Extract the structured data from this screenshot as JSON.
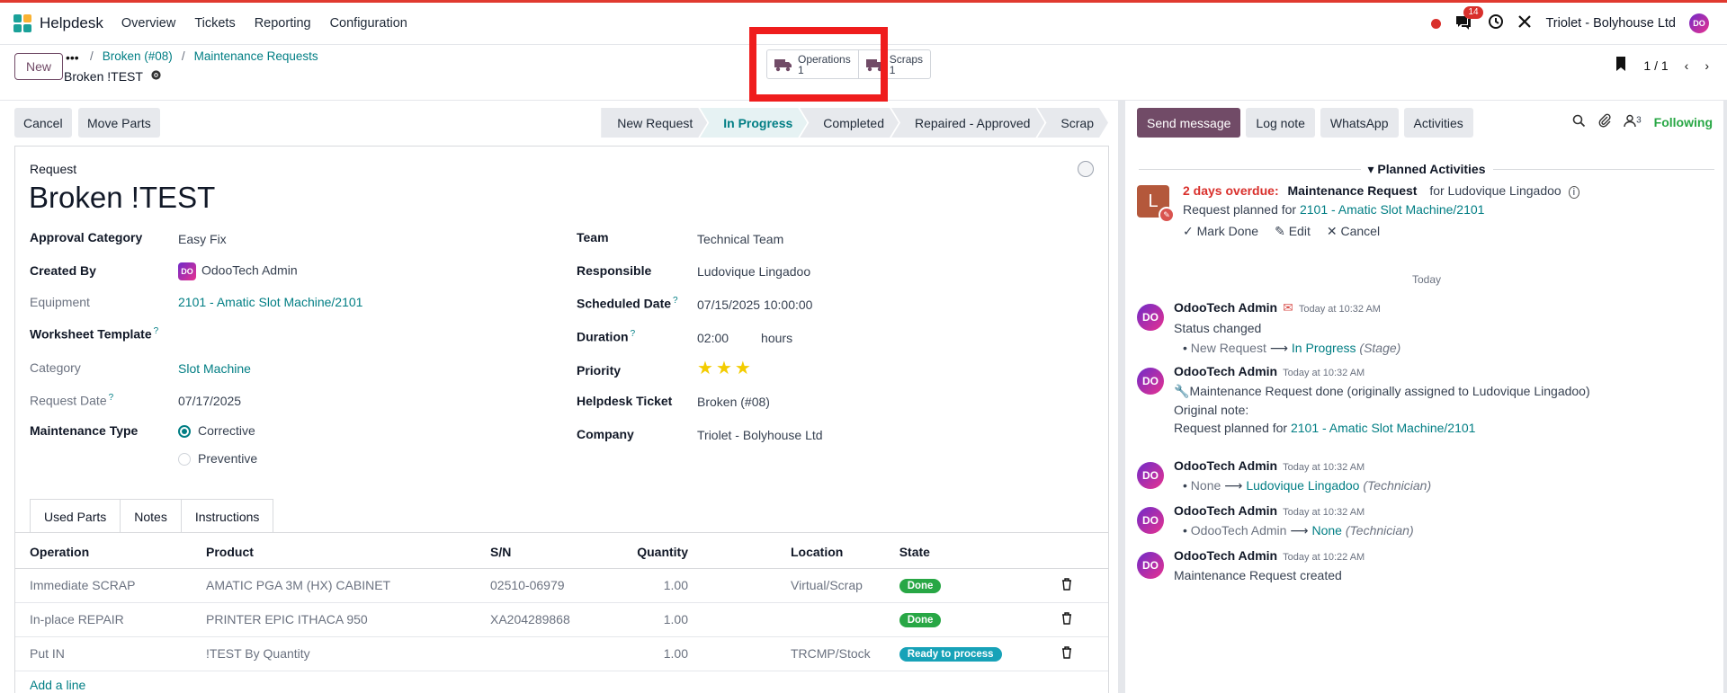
{
  "nav": {
    "app_name": "Helpdesk",
    "menu": [
      "Overview",
      "Tickets",
      "Reporting",
      "Configuration"
    ],
    "chat_count": "14",
    "company": "Triolet - Bolyhouse Ltd"
  },
  "control": {
    "new_label": "New",
    "breadcrumb": [
      "Broken (#08)",
      "Maintenance Requests"
    ],
    "record_name": "Broken !TEST",
    "smart_buttons": [
      {
        "label": "Operations",
        "count": "1"
      },
      {
        "label": "Scraps",
        "count": "1"
      }
    ],
    "pager": "1 / 1"
  },
  "statusbar": {
    "cancel": "Cancel",
    "move_parts": "Move Parts",
    "stages": [
      "New Request",
      "In Progress",
      "Completed",
      "Repaired - Approved",
      "Scrap"
    ],
    "active_stage": "In Progress"
  },
  "form": {
    "request_label": "Request",
    "title": "Broken !TEST",
    "left": {
      "approval_category": {
        "label": "Approval Category",
        "value": "Easy Fix"
      },
      "created_by": {
        "label": "Created By",
        "value": "OdooTech Admin"
      },
      "equipment": {
        "label": "Equipment",
        "value": "2101 - Amatic Slot Machine/2101"
      },
      "worksheet": {
        "label": "Worksheet Template",
        "help": "?"
      },
      "category": {
        "label": "Category",
        "value": "Slot Machine"
      },
      "request_date": {
        "label": "Request Date",
        "help": "?",
        "value": "07/17/2025"
      },
      "maintenance_type": {
        "label": "Maintenance Type",
        "options": [
          "Corrective",
          "Preventive"
        ],
        "selected": "Corrective"
      }
    },
    "right": {
      "team": {
        "label": "Team",
        "value": "Technical Team"
      },
      "responsible": {
        "label": "Responsible",
        "value": "Ludovique Lingadoo"
      },
      "scheduled_date": {
        "label": "Scheduled Date",
        "help": "?",
        "value": "07/15/2025 10:00:00"
      },
      "duration": {
        "label": "Duration",
        "help": "?",
        "value": "02:00",
        "unit": "hours"
      },
      "priority": {
        "label": "Priority",
        "stars": 3,
        "max": 3
      },
      "helpdesk_ticket": {
        "label": "Helpdesk Ticket",
        "value": "Broken (#08)"
      },
      "company": {
        "label": "Company",
        "value": "Triolet - Bolyhouse Ltd"
      }
    },
    "tabs": [
      "Used Parts",
      "Notes",
      "Instructions"
    ],
    "table": {
      "headers": [
        "Operation",
        "Product",
        "S/N",
        "Quantity",
        "Location",
        "State"
      ],
      "rows": [
        {
          "operation": "Immediate SCRAP",
          "product": "AMATIC PGA 3M (HX) CABINET",
          "sn": "02510-06979",
          "qty": "1.00",
          "location": "Virtual/Scrap",
          "state": "Done"
        },
        {
          "operation": "In-place REPAIR",
          "product": "PRINTER EPIC ITHACA 950",
          "sn": "XA204289868",
          "qty": "1.00",
          "location": "",
          "state": "Done"
        },
        {
          "operation": "Put IN",
          "product": "!TEST By Quantity",
          "sn": "",
          "qty": "1.00",
          "location": "TRCMP/Stock",
          "state": "Ready to process"
        }
      ],
      "add_line": "Add a line"
    }
  },
  "chatter": {
    "send_message": "Send message",
    "log_note": "Log note",
    "whatsapp": "WhatsApp",
    "activities": "Activities",
    "followers": "3",
    "following": "Following",
    "planned_title": "Planned Activities",
    "activity": {
      "avatar": "L",
      "overdue": "2 days overdue:",
      "type": "Maintenance Request",
      "for": "for Ludovique Lingadoo",
      "summary_prefix": "Request planned for",
      "summary_link": "2101 - Amatic Slot Machine/2101",
      "mark_done": "Mark Done",
      "edit": "Edit",
      "cancel": "Cancel"
    },
    "today": "Today",
    "messages": [
      {
        "author": "OdooTech Admin",
        "time": "Today at 10:32 AM",
        "body": "Status changed",
        "from": "New Request",
        "to": "In Progress",
        "field": "(Stage)"
      },
      {
        "author": "OdooTech Admin",
        "time": "Today at 10:32 AM",
        "line1": "Maintenance Request done (originally assigned to Ludovique Lingadoo)",
        "line2": "Original note:",
        "line3_prefix": "Request planned for",
        "line3_link": "2101 - Amatic Slot Machine/2101"
      },
      {
        "author": "OdooTech Admin",
        "time": "Today at 10:32 AM",
        "from": "None",
        "to": "Ludovique Lingadoo",
        "field": "(Technician)"
      },
      {
        "author": "OdooTech Admin",
        "time": "Today at 10:32 AM",
        "from": "OdooTech Admin",
        "to": "None",
        "field": "(Technician)"
      },
      {
        "author": "OdooTech Admin",
        "time": "Today at 10:22 AM",
        "body": "Maintenance Request created"
      }
    ]
  }
}
